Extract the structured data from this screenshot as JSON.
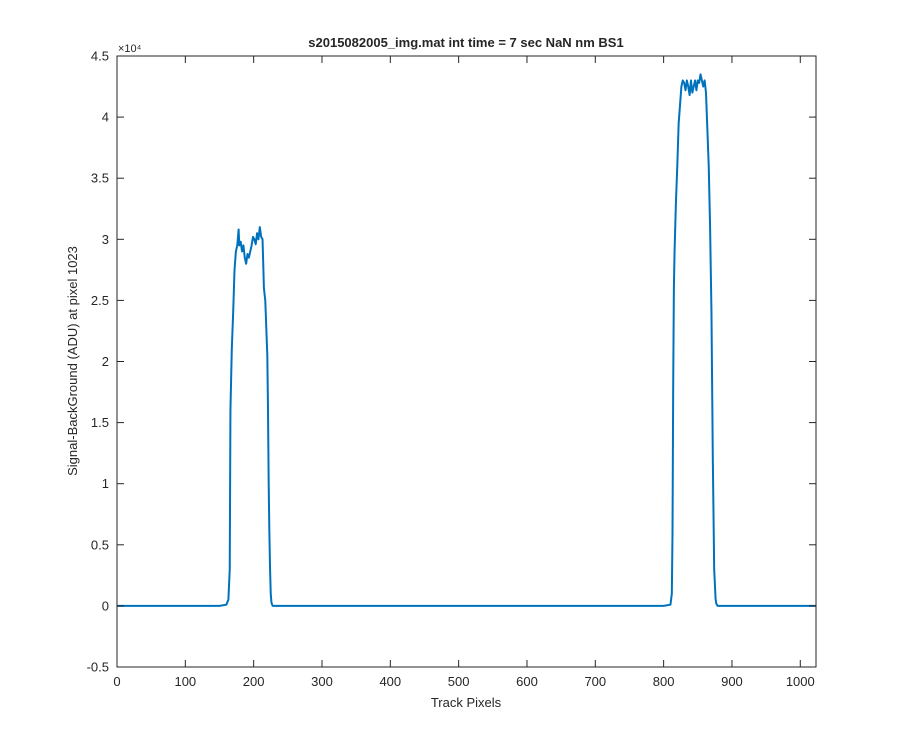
{
  "chart_data": {
    "type": "line",
    "title": "s2015082005_img.mat int time = 7 sec  NaN nm BS1",
    "xlabel": "Track Pixels",
    "ylabel": "Signal-BackGround (ADU) at pixel 1023",
    "xlim": [
      0,
      1023
    ],
    "ylim": [
      -0.5,
      4.5
    ],
    "y_scale_note": "×10⁴",
    "y_multiplier": 10000,
    "grid": false,
    "legend": "none",
    "x_ticks": [
      0,
      100,
      200,
      300,
      400,
      500,
      600,
      700,
      800,
      900,
      1000
    ],
    "x_tick_labels": [
      "0",
      "100",
      "200",
      "300",
      "400",
      "500",
      "600",
      "700",
      "800",
      "900",
      "1000"
    ],
    "y_ticks": [
      -0.5,
      0,
      0.5,
      1,
      1.5,
      2,
      2.5,
      3,
      3.5,
      4,
      4.5
    ],
    "y_tick_labels": [
      "-0.5",
      "0",
      "0.5",
      "1",
      "1.5",
      "2",
      "2.5",
      "3",
      "3.5",
      "4",
      "4.5"
    ],
    "series": [
      {
        "color": "#0072bd",
        "x": [
          0,
          150,
          160,
          163,
          165,
          166,
          168,
          170,
          172,
          174,
          176,
          178,
          179,
          181,
          183,
          185,
          187,
          189,
          191,
          193,
          195,
          197,
          199,
          201,
          203,
          205,
          207,
          209,
          211,
          213,
          215,
          217,
          219,
          220,
          221,
          222,
          223,
          224,
          225,
          226,
          227,
          228,
          230,
          240,
          400,
          600,
          800,
          810,
          812,
          813,
          814,
          815,
          816,
          818,
          820,
          822,
          824,
          826,
          828,
          830,
          832,
          834,
          836,
          838,
          840,
          842,
          844,
          846,
          848,
          850,
          852,
          854,
          856,
          858,
          860,
          862,
          864,
          866,
          868,
          870,
          872,
          874,
          876,
          877,
          878,
          879,
          880,
          885,
          900,
          1023
        ],
        "y": [
          0,
          0,
          0.01,
          0.05,
          0.3,
          1.6,
          2.1,
          2.4,
          2.75,
          2.9,
          2.95,
          3.08,
          2.95,
          2.98,
          2.9,
          2.95,
          2.85,
          2.8,
          2.88,
          2.85,
          2.9,
          2.95,
          3.02,
          3.0,
          2.96,
          3.05,
          3.0,
          3.1,
          3.02,
          3.0,
          2.6,
          2.5,
          2.2,
          2.05,
          1.6,
          1.0,
          0.6,
          0.3,
          0.1,
          0.03,
          0.01,
          0,
          0,
          0,
          0,
          0,
          0,
          0.01,
          0.1,
          0.6,
          1.8,
          2.6,
          2.9,
          3.3,
          3.6,
          3.95,
          4.1,
          4.25,
          4.3,
          4.28,
          4.22,
          4.3,
          4.25,
          4.18,
          4.3,
          4.2,
          4.25,
          4.3,
          4.22,
          4.3,
          4.28,
          4.35,
          4.3,
          4.25,
          4.3,
          4.2,
          3.9,
          3.6,
          3.1,
          2.4,
          1.2,
          0.3,
          0.06,
          0.02,
          0.01,
          0,
          0,
          0,
          0,
          0
        ]
      }
    ]
  }
}
